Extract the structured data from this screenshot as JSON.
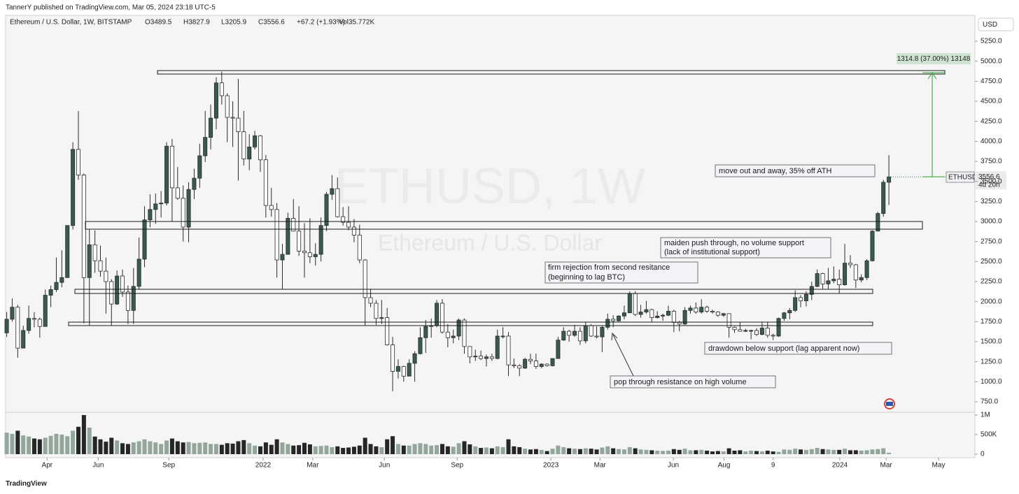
{
  "page": {
    "published": "TannerY published on TradingView.com, Mar 05, 2024 23:18 UTC-5",
    "symbol": "Ethereum / U.S. Dollar, 1W, BITSTAMP",
    "legend": [
      "O3489.5",
      "H3827.9",
      "L3205.9",
      "C3556.6",
      "+67.2 (+1.93%)",
      "Vol35.772K"
    ],
    "currency": "USD",
    "ticker_tag": "ETHUSD",
    "countdown": "4d 20h",
    "watermark": "ETHUSD, 1W",
    "watermark_sub": "Ethereum / U.S. Dollar",
    "footer": "TradingView"
  },
  "chart_data": {
    "type": "candlestick",
    "colors": {
      "up": "#3a5a4c",
      "down": "#ffffff",
      "border": "#2b2b2b",
      "volume_up": "#93a69b",
      "volume_down": "#262626"
    },
    "xlim": [
      -0.2,
      175.6
    ],
    "xticks": [
      {
        "value": 7.33,
        "label": "Apr"
      },
      {
        "value": 16.6,
        "label": "Jun"
      },
      {
        "value": 29.4,
        "label": "Sep"
      },
      {
        "value": 46.5,
        "label": "2022"
      },
      {
        "value": 55.5,
        "label": "Mar"
      },
      {
        "value": 68.5,
        "label": "Jun"
      },
      {
        "value": 81.7,
        "label": "Sep"
      },
      {
        "value": 98.7,
        "label": "2023"
      },
      {
        "value": 107.6,
        "label": "Mar"
      },
      {
        "value": 120.9,
        "label": "Jun"
      },
      {
        "value": 130.1,
        "label": "Aug"
      },
      {
        "value": 139.0,
        "label": "9"
      },
      {
        "value": 151.1,
        "label": "2024"
      },
      {
        "value": 159.5,
        "label": "Mar"
      },
      {
        "value": 169.0,
        "label": "May"
      }
    ],
    "ylim": [
      619.2,
      5572.7
    ],
    "yticks": [
      {
        "value": 750,
        "label": "750.0"
      },
      {
        "value": 1000,
        "label": "1000.0"
      },
      {
        "value": 1250,
        "label": "1250.0"
      },
      {
        "value": 1500,
        "label": "1500.0"
      },
      {
        "value": 1750,
        "label": "1750.0"
      },
      {
        "value": 2000,
        "label": "2000.0"
      },
      {
        "value": 2250,
        "label": "2250.0"
      },
      {
        "value": 2500,
        "label": "2500.0"
      },
      {
        "value": 2750,
        "label": "2750.0"
      },
      {
        "value": 3000,
        "label": "3000.0"
      },
      {
        "value": 3250,
        "label": "3250.0"
      },
      {
        "value": 3500,
        "label": "3500.0"
      },
      {
        "value": 3750,
        "label": "3750.0"
      },
      {
        "value": 4000,
        "label": "4000.0"
      },
      {
        "value": 4250,
        "label": "4250.0"
      },
      {
        "value": 4500,
        "label": "4500.0"
      },
      {
        "value": 4750,
        "label": "4750.0"
      },
      {
        "value": 5000,
        "label": "5000.0"
      },
      {
        "value": 5250,
        "label": "5250.0"
      }
    ],
    "volume_ylim": [
      0,
      1071400
    ],
    "volume_ticks": [
      0,
      {
        "value": 500000,
        "label": "500K"
      },
      {
        "value": 1000000,
        "label": "1M"
      }
    ],
    "grid": false,
    "ohlc": [
      [
        1610,
        1870,
        1560,
        1780
      ],
      [
        1780,
        2040,
        1750,
        1930
      ],
      [
        1930,
        1960,
        1300,
        1420
      ],
      [
        1420,
        1700,
        1420,
        1640
      ],
      [
        1640,
        1950,
        1600,
        1790
      ],
      [
        1790,
        1870,
        1680,
        1780
      ],
      [
        1780,
        1800,
        1550,
        1690
      ],
      [
        1690,
        2150,
        1690,
        2080
      ],
      [
        2080,
        2200,
        1930,
        2150
      ],
      [
        2150,
        2550,
        2120,
        2240
      ],
      [
        2240,
        2640,
        2180,
        2300
      ],
      [
        2300,
        2950,
        2300,
        2950
      ],
      [
        2950,
        3990,
        2900,
        3900
      ],
      [
        3900,
        4380,
        3520,
        3580
      ],
      [
        3580,
        3600,
        1730,
        2300
      ],
      [
        2300,
        2900,
        1700,
        2710
      ],
      [
        2710,
        2890,
        2360,
        2510
      ],
      [
        2510,
        2700,
        2310,
        2380
      ],
      [
        2380,
        2550,
        1850,
        2250
      ],
      [
        2250,
        2280,
        1700,
        1970
      ],
      [
        1970,
        2390,
        1960,
        2320
      ],
      [
        2320,
        2400,
        2060,
        2120
      ],
      [
        2120,
        2200,
        1720,
        1890
      ],
      [
        1890,
        2420,
        1720,
        2190
      ],
      [
        2190,
        2800,
        2150,
        2530
      ],
      [
        2530,
        3190,
        2430,
        3020
      ],
      [
        3020,
        3340,
        2930,
        3150
      ],
      [
        3150,
        3350,
        2970,
        3220
      ],
      [
        3220,
        3380,
        3050,
        3230
      ],
      [
        3230,
        3990,
        3200,
        3940
      ],
      [
        3940,
        4030,
        3000,
        3420
      ],
      [
        3420,
        3680,
        3270,
        3290
      ],
      [
        3290,
        3450,
        2750,
        2930
      ],
      [
        2930,
        3490,
        2740,
        3400
      ],
      [
        3400,
        3660,
        3280,
        3540
      ],
      [
        3540,
        3970,
        3420,
        3820
      ],
      [
        3820,
        4380,
        3740,
        4050
      ],
      [
        4050,
        4460,
        3900,
        4290
      ],
      [
        4290,
        4800,
        4150,
        4730
      ],
      [
        4730,
        4870,
        4460,
        4570
      ],
      [
        4570,
        4600,
        3990,
        4300
      ],
      [
        4300,
        4500,
        3930,
        4290
      ],
      [
        4290,
        4780,
        3510,
        4120
      ],
      [
        4120,
        4380,
        3700,
        3780
      ],
      [
        3780,
        4090,
        3640,
        3930
      ],
      [
        3930,
        4130,
        3900,
        4070
      ],
      [
        4070,
        4080,
        3620,
        3770
      ],
      [
        3770,
        3830,
        3050,
        3200
      ],
      [
        3200,
        3420,
        3060,
        3150
      ],
      [
        3150,
        3230,
        2300,
        2520
      ],
      [
        2520,
        2720,
        2160,
        2590
      ],
      [
        2590,
        3110,
        2590,
        3040
      ],
      [
        3040,
        3280,
        2880,
        2880
      ],
      [
        2880,
        3190,
        2570,
        2630
      ],
      [
        2630,
        2980,
        2300,
        2610
      ],
      [
        2610,
        3040,
        2480,
        2560
      ],
      [
        2560,
        2730,
        2450,
        2590
      ],
      [
        2590,
        3050,
        2500,
        2950
      ],
      [
        2950,
        3370,
        2880,
        3340
      ],
      [
        3340,
        3580,
        3270,
        3410
      ],
      [
        3410,
        3550,
        3050,
        3060
      ],
      [
        3060,
        3180,
        2950,
        2990
      ],
      [
        2990,
        3190,
        2890,
        2930
      ],
      [
        2930,
        3030,
        2740,
        2830
      ],
      [
        2830,
        2960,
        2480,
        2520
      ],
      [
        2520,
        2530,
        1700,
        2050
      ],
      [
        2050,
        2160,
        1930,
        1980
      ],
      [
        1980,
        2020,
        1710,
        1790
      ],
      [
        1790,
        2020,
        1720,
        1800
      ],
      [
        1800,
        1920,
        1450,
        1460
      ],
      [
        1460,
        1560,
        880,
        1130
      ],
      [
        1130,
        1280,
        1040,
        1190
      ],
      [
        1190,
        1200,
        1000,
        1070
      ],
      [
        1070,
        1280,
        1070,
        1230
      ],
      [
        1230,
        1380,
        1000,
        1350
      ],
      [
        1350,
        1680,
        1340,
        1550
      ],
      [
        1550,
        1770,
        1360,
        1690
      ],
      [
        1690,
        1790,
        1550,
        1700
      ],
      [
        1700,
        2020,
        1680,
        1980
      ],
      [
        1980,
        2030,
        1600,
        1620
      ],
      [
        1620,
        1720,
        1430,
        1550
      ],
      [
        1550,
        1650,
        1480,
        1570
      ],
      [
        1570,
        1790,
        1520,
        1770
      ],
      [
        1770,
        1790,
        1350,
        1440
      ],
      [
        1440,
        1440,
        1230,
        1310
      ],
      [
        1310,
        1400,
        1260,
        1320
      ],
      [
        1320,
        1390,
        1270,
        1290
      ],
      [
        1290,
        1340,
        1190,
        1310
      ],
      [
        1310,
        1350,
        1260,
        1290
      ],
      [
        1290,
        1650,
        1280,
        1570
      ],
      [
        1570,
        1680,
        1540,
        1570
      ],
      [
        1570,
        1620,
        1070,
        1210
      ],
      [
        1210,
        1290,
        1170,
        1200
      ],
      [
        1200,
        1220,
        1070,
        1170
      ],
      [
        1170,
        1300,
        1160,
        1280
      ],
      [
        1280,
        1350,
        1220,
        1260
      ],
      [
        1260,
        1350,
        1160,
        1190
      ],
      [
        1190,
        1230,
        1170,
        1220
      ],
      [
        1220,
        1230,
        1190,
        1200
      ],
      [
        1200,
        1290,
        1190,
        1290
      ],
      [
        1290,
        1560,
        1290,
        1520
      ],
      [
        1520,
        1680,
        1510,
        1630
      ],
      [
        1630,
        1650,
        1500,
        1580
      ],
      [
        1580,
        1710,
        1560,
        1630
      ],
      [
        1630,
        1680,
        1460,
        1510
      ],
      [
        1510,
        1740,
        1480,
        1700
      ],
      [
        1700,
        1720,
        1560,
        1570
      ],
      [
        1570,
        1690,
        1540,
        1560
      ],
      [
        1560,
        1700,
        1370,
        1680
      ],
      [
        1680,
        1850,
        1650,
        1780
      ],
      [
        1780,
        1830,
        1680,
        1760
      ],
      [
        1760,
        1830,
        1750,
        1820
      ],
      [
        1820,
        1950,
        1780,
        1860
      ],
      [
        1860,
        2130,
        1860,
        2100
      ],
      [
        2100,
        2130,
        1820,
        1840
      ],
      [
        1840,
        1960,
        1800,
        1870
      ],
      [
        1870,
        2010,
        1850,
        1900
      ],
      [
        1900,
        1910,
        1740,
        1800
      ],
      [
        1800,
        1880,
        1790,
        1820
      ],
      [
        1820,
        1850,
        1760,
        1830
      ],
      [
        1830,
        1950,
        1820,
        1880
      ],
      [
        1880,
        1900,
        1620,
        1740
      ],
      [
        1740,
        1760,
        1630,
        1720
      ],
      [
        1720,
        1930,
        1710,
        1890
      ],
      [
        1890,
        1950,
        1850,
        1920
      ],
      [
        1920,
        1990,
        1850,
        1870
      ],
      [
        1870,
        2030,
        1850,
        1930
      ],
      [
        1930,
        1950,
        1860,
        1880
      ],
      [
        1880,
        1900,
        1850,
        1870
      ],
      [
        1870,
        1880,
        1810,
        1830
      ],
      [
        1830,
        1860,
        1810,
        1850
      ],
      [
        1850,
        1850,
        1550,
        1680
      ],
      [
        1680,
        1690,
        1610,
        1650
      ],
      [
        1650,
        1740,
        1630,
        1630
      ],
      [
        1630,
        1660,
        1620,
        1640
      ],
      [
        1640,
        1650,
        1530,
        1640
      ],
      [
        1640,
        1670,
        1570,
        1590
      ],
      [
        1590,
        1750,
        1580,
        1670
      ],
      [
        1670,
        1750,
        1550,
        1580
      ],
      [
        1580,
        1600,
        1520,
        1570
      ],
      [
        1570,
        1800,
        1560,
        1790
      ],
      [
        1790,
        1870,
        1760,
        1860
      ],
      [
        1860,
        1920,
        1780,
        1890
      ],
      [
        1890,
        2140,
        1870,
        2050
      ],
      [
        2050,
        2080,
        1930,
        2010
      ],
      [
        2010,
        2130,
        1940,
        2090
      ],
      [
        2090,
        2250,
        2020,
        2190
      ],
      [
        2190,
        2400,
        2180,
        2350
      ],
      [
        2350,
        2360,
        2160,
        2220
      ],
      [
        2220,
        2420,
        2160,
        2260
      ],
      [
        2260,
        2440,
        2230,
        2280
      ],
      [
        2280,
        2400,
        2100,
        2210
      ],
      [
        2210,
        2720,
        2200,
        2480
      ],
      [
        2480,
        2580,
        2420,
        2460
      ],
      [
        2460,
        2470,
        2170,
        2270
      ],
      [
        2270,
        2340,
        2240,
        2300
      ],
      [
        2300,
        2530,
        2270,
        2510
      ],
      [
        2510,
        2890,
        2500,
        2880
      ],
      [
        2880,
        3120,
        2880,
        3100
      ],
      [
        3100,
        3520,
        3060,
        3490
      ],
      [
        3489.5,
        3827.9,
        3205.9,
        3556.6
      ]
    ],
    "volume": [
      550000,
      520000,
      600000,
      480000,
      450000,
      400000,
      380000,
      420000,
      470000,
      520000,
      500000,
      460000,
      600000,
      700000,
      1000000,
      680000,
      450000,
      380000,
      320000,
      420000,
      350000,
      280000,
      260000,
      300000,
      330000,
      380000,
      330000,
      300000,
      260000,
      350000,
      400000,
      330000,
      300000,
      310000,
      280000,
      290000,
      300000,
      260000,
      260000,
      240000,
      280000,
      270000,
      330000,
      360000,
      280000,
      220000,
      200000,
      300000,
      240000,
      380000,
      300000,
      260000,
      220000,
      230000,
      290000,
      250000,
      200000,
      210000,
      220000,
      180000,
      200000,
      160000,
      170000,
      190000,
      220000,
      420000,
      260000,
      200000,
      180000,
      380000,
      460000,
      260000,
      220000,
      220000,
      260000,
      280000,
      260000,
      220000,
      230000,
      260000,
      200000,
      190000,
      280000,
      330000,
      250000,
      200000,
      160000,
      170000,
      150000,
      200000,
      180000,
      380000,
      200000,
      180000,
      140000,
      120000,
      130000,
      110000,
      80000,
      140000,
      220000,
      180000,
      150000,
      140000,
      130000,
      150000,
      140000,
      120000,
      170000,
      200000,
      150000,
      130000,
      120000,
      180000,
      150000,
      120000,
      110000,
      100000,
      90000,
      85000,
      90000,
      130000,
      110000,
      140000,
      100000,
      100000,
      110000,
      90000,
      70000,
      80000,
      70000,
      150000,
      90000,
      100000,
      70000,
      90000,
      80000,
      70000,
      90000,
      70000,
      60000,
      120000,
      110000,
      140000,
      120000,
      110000,
      130000,
      160000,
      130000,
      120000,
      110000,
      110000,
      140000,
      100000,
      100000,
      90000,
      100000,
      120000,
      130000,
      150000,
      35772
    ],
    "annotations": [
      [
        "move out and away, 35% off ATH"
      ],
      [
        "maiden push through, no volume support",
        "(lack of institutional support)"
      ],
      [
        "firm rejection from second resitance",
        "(beginning to lag BTC)"
      ],
      [
        "drawdown below support (lag apparent now)"
      ],
      [
        "pop through resistance on high volume"
      ]
    ],
    "measure_label": "1314.8 (37.00%) 13148"
  }
}
